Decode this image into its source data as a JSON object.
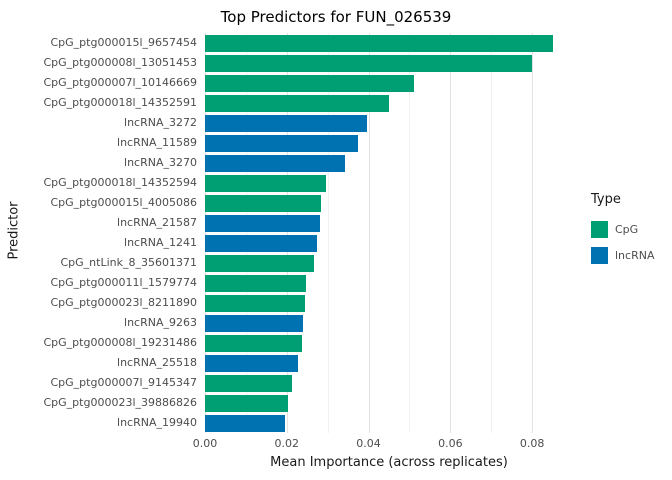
{
  "chart_data": {
    "type": "bar",
    "orientation": "horizontal",
    "title": "Top Predictors for FUN_026539",
    "xlabel": "Mean Importance (across replicates)",
    "ylabel": "Predictor",
    "xlim": [
      0,
      0.09
    ],
    "grid": true,
    "legend_position": "right",
    "xticks": [
      {
        "v": 0.0,
        "label": "0.00"
      },
      {
        "v": 0.02,
        "label": "0.02"
      },
      {
        "v": 0.04,
        "label": "0.04"
      },
      {
        "v": 0.06,
        "label": "0.06"
      },
      {
        "v": 0.08,
        "label": "0.08"
      }
    ],
    "x_minor": [
      0.01,
      0.03,
      0.05,
      0.07
    ],
    "colors": {
      "CpG": "#009E73",
      "lncRNA": "#0072B2"
    },
    "legend": {
      "title": "Type",
      "entries": [
        {
          "label": "CpG",
          "type": "CpG"
        },
        {
          "label": "lncRNA",
          "type": "lncRNA"
        }
      ]
    },
    "bars": [
      {
        "label": "CpG_ptg000015l_9657454",
        "value": 0.085,
        "type": "CpG"
      },
      {
        "label": "CpG_ptg000008l_13051453",
        "value": 0.08,
        "type": "CpG"
      },
      {
        "label": "CpG_ptg000007l_10146669",
        "value": 0.051,
        "type": "CpG"
      },
      {
        "label": "CpG_ptg000018l_14352591",
        "value": 0.045,
        "type": "CpG"
      },
      {
        "label": "lncRNA_3272",
        "value": 0.0395,
        "type": "lncRNA"
      },
      {
        "label": "lncRNA_11589",
        "value": 0.0375,
        "type": "lncRNA"
      },
      {
        "label": "lncRNA_3270",
        "value": 0.0343,
        "type": "lncRNA"
      },
      {
        "label": "CpG_ptg000018l_14352594",
        "value": 0.0296,
        "type": "CpG"
      },
      {
        "label": "CpG_ptg000015l_4005086",
        "value": 0.0284,
        "type": "CpG"
      },
      {
        "label": "lncRNA_21587",
        "value": 0.0281,
        "type": "lncRNA"
      },
      {
        "label": "lncRNA_1241",
        "value": 0.0274,
        "type": "lncRNA"
      },
      {
        "label": "CpG_ntLink_8_35601371",
        "value": 0.0267,
        "type": "CpG"
      },
      {
        "label": "CpG_ptg000011l_1579774",
        "value": 0.0247,
        "type": "CpG"
      },
      {
        "label": "CpG_ptg000023l_8211890",
        "value": 0.0244,
        "type": "CpG"
      },
      {
        "label": "lncRNA_9263",
        "value": 0.024,
        "type": "lncRNA"
      },
      {
        "label": "CpG_ptg000008l_19231486",
        "value": 0.0237,
        "type": "CpG"
      },
      {
        "label": "lncRNA_25518",
        "value": 0.0227,
        "type": "lncRNA"
      },
      {
        "label": "CpG_ptg000007l_9145347",
        "value": 0.0212,
        "type": "CpG"
      },
      {
        "label": "CpG_ptg000023l_39886826",
        "value": 0.0202,
        "type": "CpG"
      },
      {
        "label": "lncRNA_19940",
        "value": 0.0195,
        "type": "lncRNA"
      }
    ]
  }
}
